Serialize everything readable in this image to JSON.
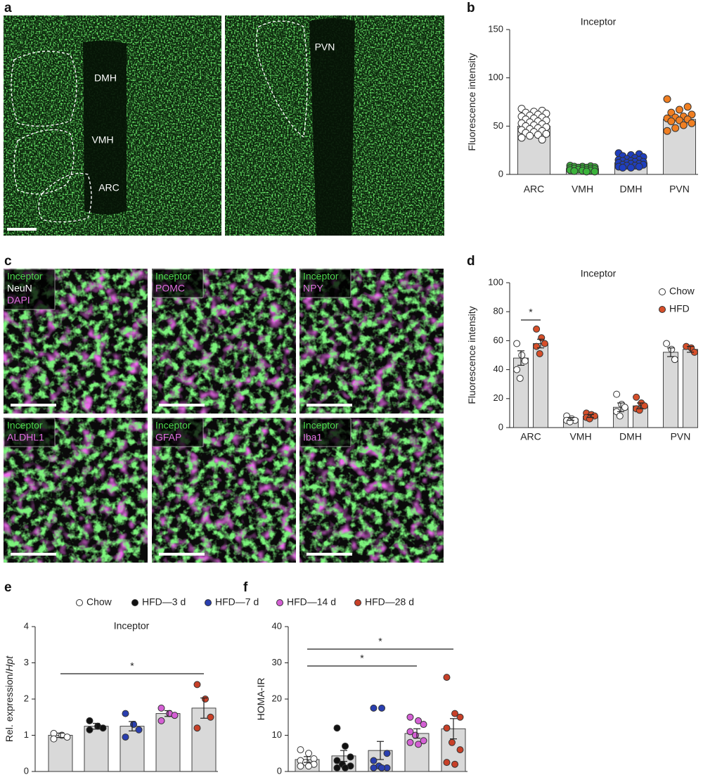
{
  "panel_labels": [
    "a",
    "b",
    "c",
    "d",
    "e",
    "f"
  ],
  "panel_a": {
    "regions": [
      "DMH",
      "VMH",
      "ARC",
      "PVN"
    ]
  },
  "panel_c": {
    "images": [
      [
        "Inceptor",
        "NeuN",
        "DAPI"
      ],
      [
        "Inceptor",
        "POMC"
      ],
      [
        "Inceptor",
        "NPY"
      ],
      [
        "Inceptor",
        "ALDHL1"
      ],
      [
        "Inceptor",
        "GFAP"
      ],
      [
        "Inceptor",
        "Iba1"
      ]
    ]
  },
  "chart_data": [
    {
      "type": "bar",
      "title": "Inceptor",
      "ylabel": "Fluorescence intensity",
      "categories": [
        "ARC",
        "VMH",
        "DMH",
        "PVN"
      ],
      "bar_color": "#d9d9d9",
      "series": [
        {
          "values": [
            50,
            6,
            12,
            57
          ],
          "point_colors": [
            "#ffffff",
            "#3bb33b",
            "#1f3fbf",
            "#f07f22"
          ],
          "points": [
            [
              68,
              66,
              65,
              64,
              63,
              62,
              61,
              60,
              59,
              58,
              57,
              56,
              55,
              54,
              53,
              52,
              51,
              50,
              49,
              48,
              47,
              46,
              45,
              44,
              43,
              42,
              41,
              40,
              38,
              36
            ],
            [
              9,
              8.5,
              8,
              8,
              7.5,
              7,
              7,
              6.5,
              6,
              6,
              6,
              5.5,
              5,
              5,
              4.5,
              4,
              4,
              3.5,
              3,
              3
            ],
            [
              22,
              21,
              20,
              19,
              18,
              17,
              16,
              15,
              15,
              14,
              14,
              13,
              13,
              12,
              12,
              11,
              11,
              10,
              10,
              9,
              9,
              8,
              8,
              7,
              7
            ],
            [
              78,
              70,
              67,
              64,
              62,
              60,
              59,
              58,
              57,
              56,
              55,
              53,
              51,
              48,
              45
            ]
          ]
        }
      ],
      "ylim": [
        0,
        150
      ],
      "yticks": [
        0,
        50,
        100,
        150
      ]
    },
    {
      "type": "bar",
      "title": "Inceptor",
      "ylabel": "Fluorescence intensity",
      "categories": [
        "ARC",
        "VMH",
        "DMH",
        "PVN"
      ],
      "bar_color": "#d9d9d9",
      "legend": "top-right",
      "series": [
        {
          "name": "Chow",
          "color": "#ffffff",
          "values": [
            48,
            6,
            14,
            52
          ],
          "errors": [
            5,
            1,
            3,
            3
          ],
          "points": [
            [
              58,
              50,
              46,
              40,
              34
            ],
            [
              8,
              6,
              5,
              5,
              4
            ],
            [
              23,
              16,
              14,
              11,
              8
            ],
            [
              58,
              54,
              47
            ]
          ]
        },
        {
          "name": "HFD",
          "color": "#d64f2a",
          "values": [
            58,
            8,
            15,
            54
          ],
          "errors": [
            3,
            1,
            2,
            2
          ],
          "points": [
            [
              68,
              62,
              58,
              56,
              51
            ],
            [
              10,
              9,
              8,
              7,
              6
            ],
            [
              21,
              17,
              15,
              13,
              12
            ],
            [
              56,
              55,
              52
            ]
          ]
        }
      ],
      "annotations": [
        {
          "text": "*",
          "from": [
            0,
            0
          ],
          "to": [
            0,
            1
          ]
        }
      ],
      "ylim": [
        0,
        100
      ],
      "yticks": [
        0,
        20,
        40,
        60,
        80,
        100
      ]
    },
    {
      "type": "bar",
      "title": "Inceptor",
      "ylabel": "Rel. expression/",
      "ylabel_italic": "Hpt",
      "categories": [
        null
      ],
      "bar_color": "#d9d9d9",
      "legend": "top",
      "series": [
        {
          "name": "Chow",
          "color": "#ffffff",
          "values": [
            1.0
          ],
          "errors": [
            0.06
          ],
          "points": [
            [
              1.05,
              1.0,
              0.95,
              0.9
            ]
          ]
        },
        {
          "name": "HFD—3 d",
          "color": "#111111",
          "values": [
            1.25
          ],
          "errors": [
            0.08
          ],
          "points": [
            [
              1.4,
              1.25,
              1.2,
              1.15
            ]
          ]
        },
        {
          "name": "HFD—7 d",
          "color": "#2a3fb0",
          "values": [
            1.25
          ],
          "errors": [
            0.13
          ],
          "points": [
            [
              1.6,
              1.3,
              1.15,
              0.95
            ]
          ]
        },
        {
          "name": "HFD—14 d",
          "color": "#d45fd4",
          "values": [
            1.6
          ],
          "errors": [
            0.08
          ],
          "points": [
            [
              1.75,
              1.6,
              1.55,
              1.4
            ]
          ]
        },
        {
          "name": "HFD—28 d",
          "color": "#c84028",
          "values": [
            1.75
          ],
          "errors": [
            0.28
          ],
          "points": [
            [
              2.4,
              2.0,
              1.5,
              1.2
            ]
          ]
        }
      ],
      "annotations": [
        {
          "text": "*",
          "from": [
            0,
            0
          ],
          "to": [
            0,
            4
          ]
        }
      ],
      "ylim": [
        0,
        4
      ],
      "yticks": [
        0,
        1,
        2,
        3,
        4
      ]
    },
    {
      "type": "bar",
      "ylabel": "HOMA-IR",
      "categories": [
        null
      ],
      "bar_color": "#d9d9d9",
      "series": [
        {
          "color": "#ffffff",
          "values": [
            3.3
          ],
          "errors": [
            0.8
          ],
          "points": [
            [
              6,
              5,
              3.5,
              3,
              2.5,
              2,
              1.5,
              1.5
            ]
          ]
        },
        {
          "color": "#111111",
          "values": [
            4.3
          ],
          "errors": [
            1.5
          ],
          "points": [
            [
              12,
              7,
              4,
              3,
              2,
              1.5,
              1,
              1
            ]
          ]
        },
        {
          "color": "#2a3fb0",
          "values": [
            5.8
          ],
          "errors": [
            2.5
          ],
          "points": [
            [
              17.5,
              17.5,
              5,
              3,
              1.5,
              1,
              1,
              1
            ]
          ]
        },
        {
          "color": "#d45fd4",
          "values": [
            10.5
          ],
          "errors": [
            1.3
          ],
          "points": [
            [
              15,
              14,
              13,
              11,
              10,
              8.5,
              8,
              7.5
            ]
          ]
        },
        {
          "color": "#c84028",
          "values": [
            11.8
          ],
          "errors": [
            2.8
          ],
          "points": [
            [
              26,
              16,
              15,
              12,
              8,
              6,
              2.5,
              2
            ]
          ]
        }
      ],
      "annotations": [
        {
          "text": "*",
          "from": [
            0,
            0
          ],
          "to": [
            0,
            3
          ]
        },
        {
          "text": "*",
          "from": [
            0,
            0
          ],
          "to": [
            0,
            4
          ]
        }
      ],
      "ylim": [
        0,
        40
      ],
      "yticks": [
        0,
        10,
        20,
        30,
        40
      ]
    }
  ]
}
